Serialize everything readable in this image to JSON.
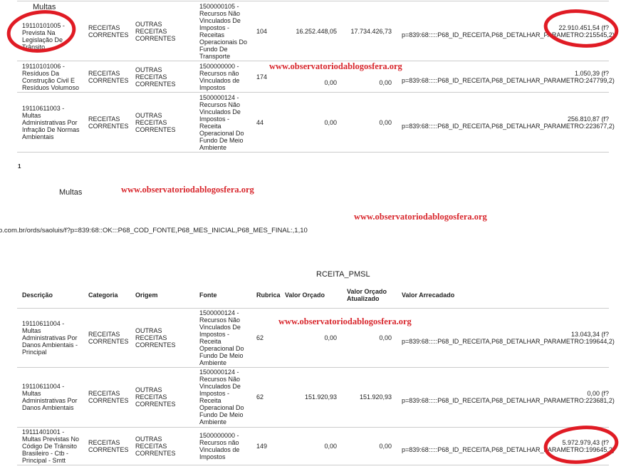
{
  "watermark": "www.observatoriodablogosfera.org",
  "overlay_label": "Multas",
  "page_number": "1",
  "section_label": "Multas",
  "url_fragment": "o.com.br/ords/saoluis/f?p=839:68::OK:::P68_COD_FONTE,P68_MES_INICIAL,P68_MES_FINAL:,1,10",
  "table2_title": "RCEITA_PMSL",
  "headers": [
    "Descrição",
    "Categoria",
    "Origem",
    "Fonte",
    "Rubrica",
    "Valor Orçado",
    "Valor Orçado Atualizado",
    "Valor Arrecadado"
  ],
  "table1": [
    {
      "descricao": "19110101005 - Prevista Na Legislação De Trânsito",
      "categoria": "RECEITAS CORRENTES",
      "origem": "OUTRAS RECEITAS CORRENTES",
      "fonte": "1500000105 - Recursos Não Vinculados De Impostos - Receitas Operacionais Do Fundo De Transporte",
      "rubrica": "104",
      "valor_orcado": "16.252.448,05",
      "valor_atualizado": "17.734.426,73",
      "valor_arrecadado": "22.910.451,54 (f?",
      "link": "p=839:68:::::P68_ID_RECEITA,P68_DETALHAR_PARAMETRO:215545,2)"
    },
    {
      "descricao": "19110101006 - Resíduos Da Construção Civil E Resíduos Volumoso",
      "categoria": "RECEITAS CORRENTES",
      "origem": "OUTRAS RECEITAS CORRENTES",
      "fonte": "1500000000 - Recursos não Vinculados de Impostos",
      "rubrica": "174",
      "valor_orcado": "0,00",
      "valor_atualizado": "0,00",
      "valor_arrecadado": "1.050,39 (f?",
      "link": "p=839:68:::::P68_ID_RECEITA,P68_DETALHAR_PARAMETRO:247799,2)"
    },
    {
      "descricao": "19110611003 - Multas Administrativas Por Infração De Normas Ambientais",
      "categoria": "RECEITAS CORRENTES",
      "origem": "OUTRAS RECEITAS CORRENTES",
      "fonte": "1500000124 - Recursos Não Vinculados De Impostos - Receita Operacional Do Fundo De Meio Ambiente",
      "rubrica": "44",
      "valor_orcado": "0,00",
      "valor_atualizado": "0,00",
      "valor_arrecadado": "256.810,87 (f?",
      "link": "p=839:68:::::P68_ID_RECEITA,P68_DETALHAR_PARAMETRO:223677,2)"
    }
  ],
  "table2": [
    {
      "descricao": "19110611004 - Multas Administrativas Por Danos Ambientais - Principal",
      "categoria": "RECEITAS CORRENTES",
      "origem": "OUTRAS RECEITAS CORRENTES",
      "fonte": "1500000124 - Recursos Não Vinculados De Impostos - Receita Operacional Do Fundo De Meio Ambiente",
      "rubrica": "62",
      "valor_orcado": "0,00",
      "valor_atualizado": "0,00",
      "valor_arrecadado": "13.043,34 (f?",
      "link": "p=839:68:::::P68_ID_RECEITA,P68_DETALHAR_PARAMETRO:199644,2)"
    },
    {
      "descricao": "19110611004 - Multas Administrativas Por Danos Ambientais",
      "categoria": "RECEITAS CORRENTES",
      "origem": "OUTRAS RECEITAS CORRENTES",
      "fonte": "1500000124 - Recursos Não Vinculados De Impostos - Receita Operacional Do Fundo De Meio Ambiente",
      "rubrica": "62",
      "valor_orcado": "151.920,93",
      "valor_atualizado": "151.920,93",
      "valor_arrecadado": "0,00 (f?",
      "link": "p=839:68:::::P68_ID_RECEITA,P68_DETALHAR_PARAMETRO:223681,2)"
    },
    {
      "descricao": "19111401001 - Multas Previstas No Código De Trânsito Brasileiro - Ctb - Principal - Smtt",
      "categoria": "RECEITAS CORRENTES",
      "origem": "OUTRAS RECEITAS CORRENTES",
      "fonte": "1500000000 - Recursos não Vinculados de Impostos",
      "rubrica": "149",
      "valor_orcado": "0,00",
      "valor_atualizado": "0,00",
      "valor_arrecadado": "5.972.979,43 (f?",
      "link": "p=839:68:::::P68_ID_RECEITA,P68_DETALHAR_PARAMETRO:199645,2)"
    }
  ],
  "annotation_color": "#e01b24"
}
